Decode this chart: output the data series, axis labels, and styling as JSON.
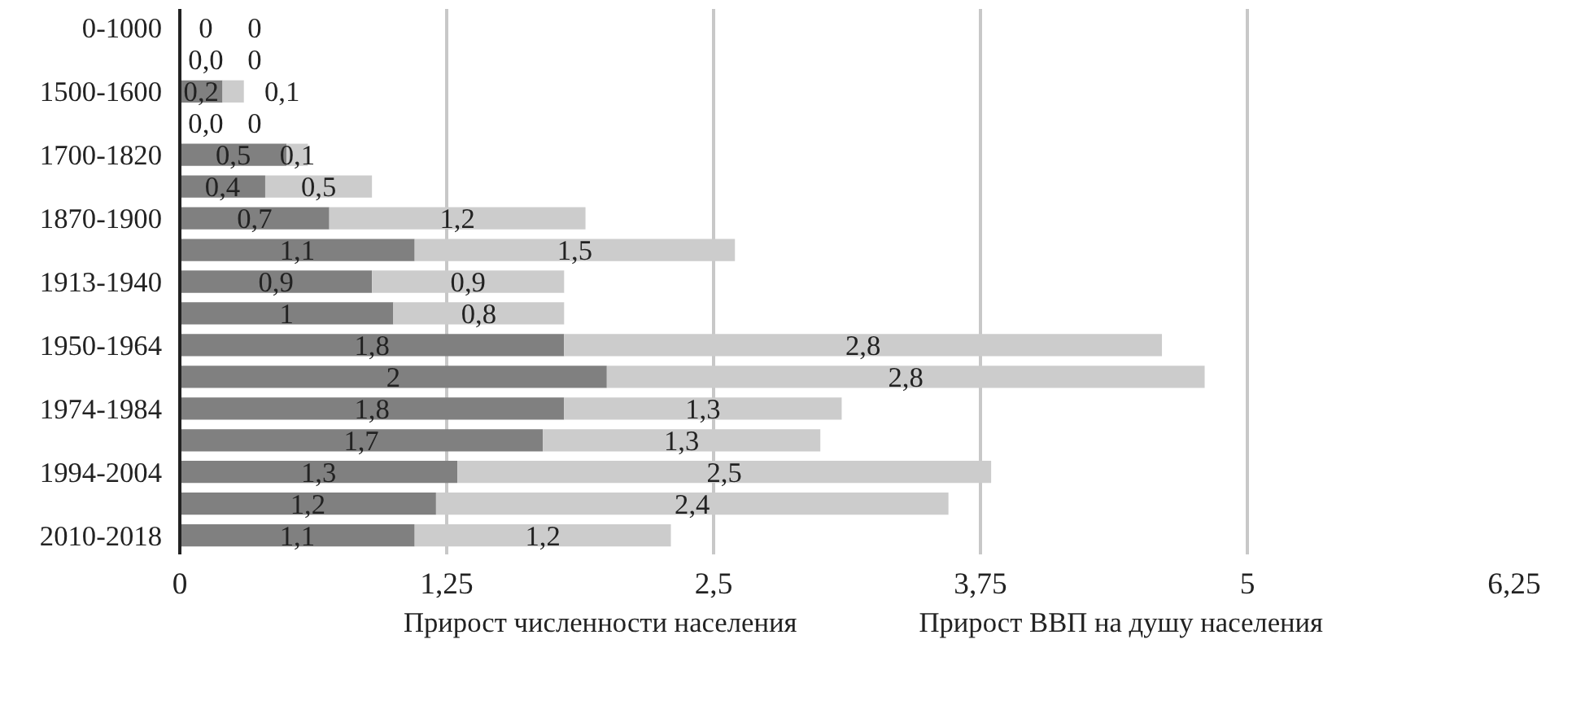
{
  "chart_data": {
    "type": "bar",
    "orientation": "horizontal",
    "stacked": true,
    "categories": [
      "0-1000",
      null,
      "1500-1600",
      null,
      "1700-1820",
      null,
      "1870-1900",
      null,
      "1913-1940",
      null,
      "1950-1964",
      null,
      "1974-1984",
      null,
      "1994-2004",
      null,
      "2010-2018"
    ],
    "series": [
      {
        "name": "Прирост численности населения",
        "color": "#808080",
        "values": [
          0,
          0.0,
          0.2,
          0.0,
          0.5,
          0.4,
          0.7,
          1.1,
          0.9,
          1,
          1.8,
          2,
          1.8,
          1.7,
          1.3,
          1.2,
          1.1
        ],
        "value_labels": [
          "0",
          "0,0",
          "0,2",
          "0,0",
          "0,5",
          "0,4",
          "0,7",
          "1,1",
          "0,9",
          "1",
          "1,8",
          "2",
          "1,8",
          "1,7",
          "1,3",
          "1,2",
          "1,1"
        ]
      },
      {
        "name": "Прирост ВВП на душу населения",
        "color": "#cccccc",
        "values": [
          0,
          0,
          0.1,
          0,
          0.1,
          0.5,
          1.2,
          1.5,
          0.9,
          0.8,
          2.8,
          2.8,
          1.3,
          1.3,
          2.5,
          2.4,
          1.2
        ],
        "value_labels": [
          "0",
          "0",
          "0,1",
          "0",
          "0,1",
          "0,5",
          "1,2",
          "1,5",
          "0,9",
          "0,8",
          "2,8",
          "2,8",
          "1,3",
          "1,3",
          "2,5",
          "2,4",
          "1,2"
        ]
      }
    ],
    "xlim": [
      0,
      6.25
    ],
    "xticks": [
      0,
      {
        "value": 1.25,
        "label": "1,25"
      },
      {
        "value": 2.5,
        "label": "2,5"
      },
      {
        "value": 3.75,
        "label": "3,75"
      },
      5,
      {
        "value": 6.25,
        "label": "6,25"
      }
    ],
    "grid": "x",
    "legend": "bottom"
  }
}
